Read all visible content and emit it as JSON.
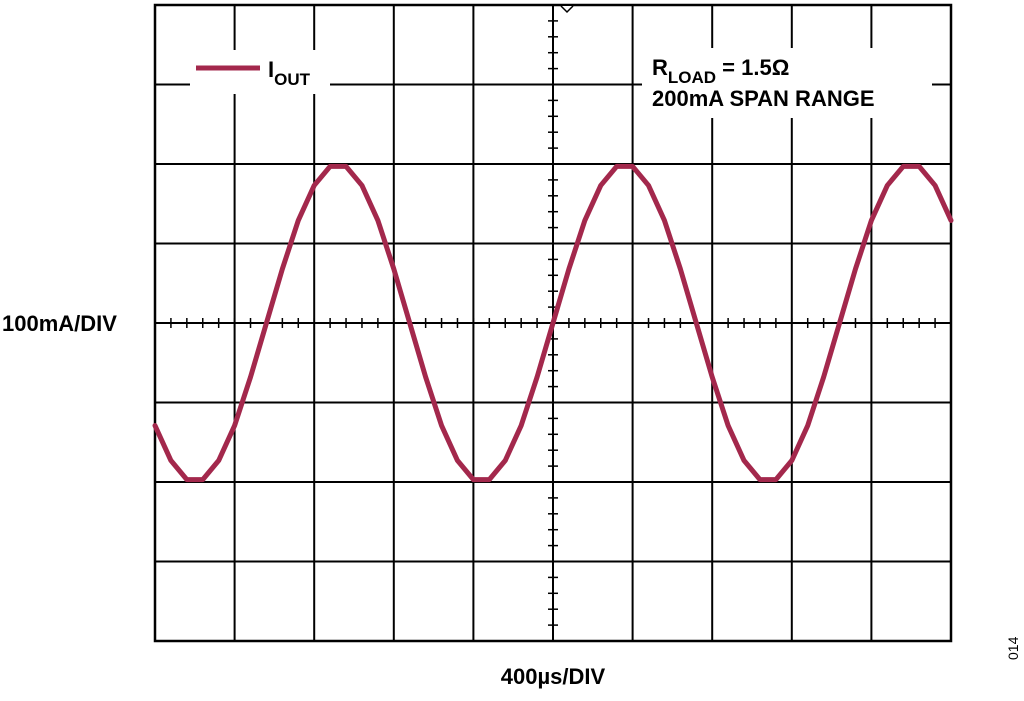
{
  "chart_data": {
    "type": "line",
    "series": [
      {
        "name": "I",
        "name_sub": "OUT",
        "color": "#a3284c",
        "values": [
          -129,
          -173,
          -197,
          -197,
          -173,
          -129,
          -68,
          0,
          68,
          129,
          173,
          197,
          197,
          173,
          129,
          68,
          0,
          -68,
          -129,
          -173,
          -197,
          -197,
          -173,
          -129,
          -68,
          0,
          68,
          129,
          173,
          197,
          197,
          173,
          129,
          68,
          0,
          -68,
          -129,
          -173,
          -197,
          -197,
          -173,
          -129,
          -68,
          0,
          68,
          129,
          173,
          197,
          197,
          173,
          129
        ]
      }
    ],
    "x": [
      0,
      80,
      160,
      240,
      320,
      400,
      480,
      560,
      640,
      720,
      800,
      880,
      960,
      1040,
      1120,
      1200,
      1280,
      1360,
      1440,
      1520,
      1600,
      1680,
      1760,
      1840,
      1920,
      2000,
      2080,
      2160,
      2240,
      2320,
      2400,
      2480,
      2560,
      2640,
      2720,
      2800,
      2880,
      2960,
      3040,
      3120,
      3200,
      3280,
      3360,
      3440,
      3520,
      3600,
      3680,
      3760,
      3840,
      3920,
      4000
    ],
    "xlim": [
      0,
      4000
    ],
    "xticks": [
      0,
      400,
      800,
      1200,
      1600,
      2000,
      2400,
      2800,
      3200,
      3600,
      4000
    ],
    "ylim": [
      -400,
      400
    ],
    "yticks": [
      -400,
      -300,
      -200,
      -100,
      0,
      100,
      200,
      300,
      400
    ],
    "grid": true,
    "xlabel": "400µs/DIV",
    "ylabel": "100mA/DIV",
    "annotations": [
      {
        "text": "R",
        "sub": "LOAD",
        "after": " = 1.5Ω"
      },
      {
        "text": "200mA SPAN RANGE"
      }
    ],
    "figure_id": "014"
  }
}
